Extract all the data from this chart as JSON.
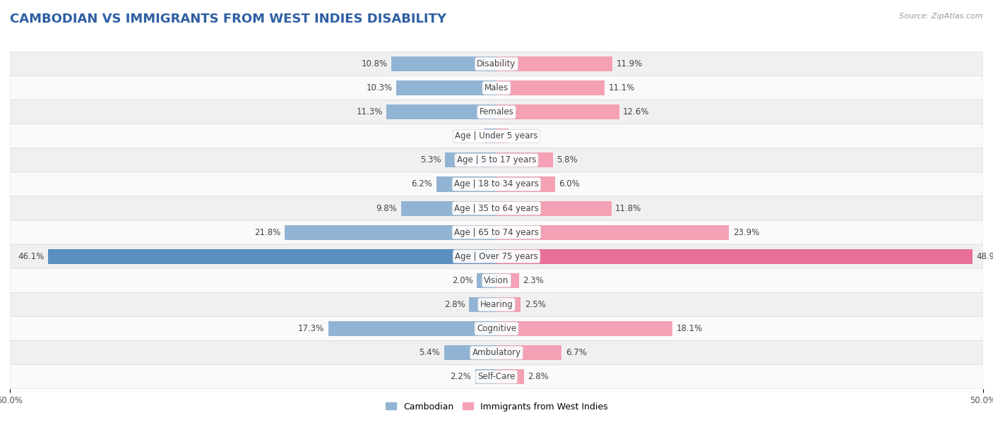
{
  "title": "CAMBODIAN VS IMMIGRANTS FROM WEST INDIES DISABILITY",
  "source": "Source: ZipAtlas.com",
  "categories": [
    "Disability",
    "Males",
    "Females",
    "Age | Under 5 years",
    "Age | 5 to 17 years",
    "Age | 18 to 34 years",
    "Age | 35 to 64 years",
    "Age | 65 to 74 years",
    "Age | Over 75 years",
    "Vision",
    "Hearing",
    "Cognitive",
    "Ambulatory",
    "Self-Care"
  ],
  "cambodian": [
    10.8,
    10.3,
    11.3,
    1.2,
    5.3,
    6.2,
    9.8,
    21.8,
    46.1,
    2.0,
    2.8,
    17.3,
    5.4,
    2.2
  ],
  "west_indies": [
    11.9,
    11.1,
    12.6,
    1.2,
    5.8,
    6.0,
    11.8,
    23.9,
    48.9,
    2.3,
    2.5,
    18.1,
    6.7,
    2.8
  ],
  "cambodian_color": "#92b4d4",
  "west_indies_color": "#f4a0b5",
  "over75_cambodian_color": "#5a8fc0",
  "over75_west_indies_color": "#e87097",
  "axis_max": 50.0,
  "fig_bg": "#ffffff",
  "row_bg_even": "#f0f0f0",
  "row_bg_odd": "#fafafa",
  "bar_height": 0.62,
  "title_color": "#2e5fa3",
  "title_fontsize": 13,
  "label_fontsize": 8.5,
  "value_fontsize": 8.5
}
